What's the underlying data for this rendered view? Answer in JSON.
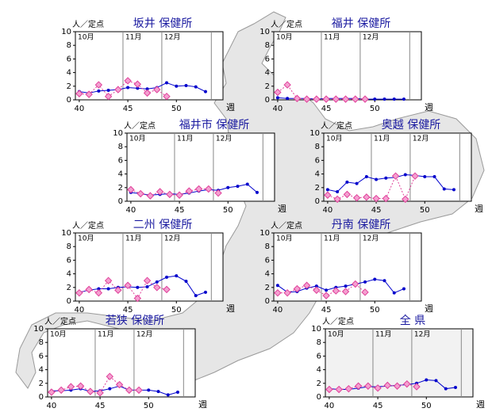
{
  "chart_data": [
    {
      "type": "line",
      "title": "坂井 保健所",
      "y_label": "人／定点",
      "x_label": "週",
      "xlim": [
        39.6,
        54.8
      ],
      "ylim": [
        0,
        10
      ],
      "xticks": [
        40,
        45,
        50
      ],
      "yticks": [
        0,
        2,
        4,
        6,
        8,
        10
      ],
      "months": [
        {
          "label": "10月",
          "x": 39.6
        },
        {
          "label": "11月",
          "x": 44.5
        },
        {
          "label": "12月",
          "x": 48.5
        }
      ],
      "month_end": 53.6,
      "background": "#ffffff",
      "x": [
        40,
        41,
        42,
        43,
        44,
        45,
        46,
        47,
        48,
        49,
        50,
        51,
        52,
        53
      ],
      "series": [
        {
          "color": "#0000cc",
          "line_style": "solid",
          "marker": "circle",
          "values": [
            1.2,
            1.0,
            1.3,
            1.4,
            1.5,
            1.8,
            1.7,
            1.6,
            1.8,
            2.5,
            2.0,
            2.1,
            1.9,
            1.2
          ]
        },
        {
          "color": "#e0409a",
          "line_style": "dashed",
          "marker": "diamond",
          "values": [
            0.9,
            0.8,
            2.2,
            0.5,
            1.5,
            2.8,
            2.3,
            1.0,
            1.5,
            0.5,
            null,
            null,
            null,
            null
          ]
        }
      ]
    },
    {
      "type": "line",
      "title": "福井 保健所",
      "y_label": "人／定点",
      "x_label": "週",
      "xlim": [
        39.6,
        54.8
      ],
      "ylim": [
        0,
        10
      ],
      "xticks": [
        40,
        45,
        50
      ],
      "yticks": [
        0,
        2,
        4,
        6,
        8,
        10
      ],
      "months": [
        {
          "label": "10月",
          "x": 39.6
        },
        {
          "label": "11月",
          "x": 44.5
        },
        {
          "label": "12月",
          "x": 48.5
        }
      ],
      "month_end": 53.6,
      "background": "#ffffff",
      "x": [
        40,
        41,
        42,
        43,
        44,
        45,
        46,
        47,
        48,
        49,
        50,
        51,
        52,
        53
      ],
      "series": [
        {
          "color": "#0000cc",
          "line_style": "solid",
          "marker": "circle",
          "values": [
            0.3,
            0.2,
            0.2,
            0.2,
            0.1,
            0.2,
            0.2,
            0.2,
            0.2,
            0.1,
            0.1,
            0.1,
            0.1,
            0.1
          ]
        },
        {
          "color": "#e0409a",
          "line_style": "dashed",
          "marker": "diamond",
          "values": [
            1.1,
            2.2,
            0.2,
            0.1,
            0.1,
            0.1,
            0.1,
            0.1,
            0.1,
            0.1,
            null,
            null,
            null,
            null
          ]
        }
      ]
    },
    {
      "type": "line",
      "title": "福井市 保健所",
      "y_label": "人／定点",
      "x_label": "週",
      "xlim": [
        39.6,
        54.8
      ],
      "ylim": [
        0,
        10
      ],
      "xticks": [
        40,
        45,
        50
      ],
      "yticks": [
        0,
        2,
        4,
        6,
        8,
        10
      ],
      "months": [
        {
          "label": "10月",
          "x": 39.6
        },
        {
          "label": "11月",
          "x": 44.5
        },
        {
          "label": "12月",
          "x": 48.5
        }
      ],
      "month_end": 53.6,
      "background": "#ffffff",
      "x": [
        40,
        41,
        42,
        43,
        44,
        45,
        46,
        47,
        48,
        49,
        50,
        51,
        52,
        53
      ],
      "series": [
        {
          "color": "#0000cc",
          "line_style": "solid",
          "marker": "circle",
          "values": [
            1.3,
            1.1,
            0.9,
            1.0,
            1.1,
            1.0,
            1.2,
            1.5,
            1.7,
            1.6,
            2.0,
            2.2,
            2.5,
            1.3
          ]
        },
        {
          "color": "#e0409a",
          "line_style": "dashed",
          "marker": "diamond",
          "values": [
            1.7,
            1.1,
            0.8,
            1.4,
            1.0,
            0.9,
            1.5,
            1.8,
            1.8,
            1.2,
            null,
            null,
            null,
            null
          ]
        }
      ]
    },
    {
      "type": "line",
      "title": "奥越 保健所",
      "y_label": "人／定点",
      "x_label": "週",
      "xlim": [
        39.6,
        54.8
      ],
      "ylim": [
        0,
        10
      ],
      "xticks": [
        40,
        45,
        50
      ],
      "yticks": [
        0,
        2,
        4,
        6,
        8,
        10
      ],
      "months": [
        {
          "label": "10月",
          "x": 39.6
        },
        {
          "label": "11月",
          "x": 44.5
        },
        {
          "label": "12月",
          "x": 48.5
        }
      ],
      "month_end": 53.6,
      "background": "#ffffff",
      "x": [
        40,
        41,
        42,
        43,
        44,
        45,
        46,
        47,
        48,
        49,
        50,
        51,
        52,
        53
      ],
      "series": [
        {
          "color": "#0000cc",
          "line_style": "solid",
          "marker": "circle",
          "values": [
            1.7,
            1.4,
            2.8,
            2.6,
            3.6,
            3.2,
            3.4,
            3.5,
            3.9,
            3.8,
            3.6,
            3.6,
            1.8,
            1.7
          ]
        },
        {
          "color": "#e0409a",
          "line_style": "dashed",
          "marker": "diamond",
          "values": [
            0.9,
            0.3,
            1.0,
            0.5,
            0.6,
            0.4,
            0.4,
            3.7,
            0.3,
            3.7,
            null,
            null,
            null,
            null
          ]
        }
      ]
    },
    {
      "type": "line",
      "title": "二州 保健所",
      "y_label": "人／定点",
      "x_label": "週",
      "xlim": [
        39.6,
        54.8
      ],
      "ylim": [
        0,
        10
      ],
      "xticks": [
        40,
        45,
        50
      ],
      "yticks": [
        0,
        2,
        4,
        6,
        8,
        10
      ],
      "months": [
        {
          "label": "10月",
          "x": 39.6
        },
        {
          "label": "11月",
          "x": 44.5
        },
        {
          "label": "12月",
          "x": 48.5
        }
      ],
      "month_end": 53.6,
      "background": "#ffffff",
      "x": [
        40,
        41,
        42,
        43,
        44,
        45,
        46,
        47,
        48,
        49,
        50,
        51,
        52,
        53
      ],
      "series": [
        {
          "color": "#0000cc",
          "line_style": "solid",
          "marker": "circle",
          "values": [
            1.3,
            1.6,
            1.8,
            1.8,
            2.0,
            2.1,
            2.0,
            2.1,
            2.8,
            3.5,
            3.7,
            2.9,
            0.8,
            1.3
          ]
        },
        {
          "color": "#e0409a",
          "line_style": "dashed",
          "marker": "diamond",
          "values": [
            1.2,
            1.7,
            1.2,
            3.0,
            1.6,
            2.3,
            0.4,
            3.0,
            2.0,
            1.7,
            null,
            null,
            null,
            null
          ]
        }
      ]
    },
    {
      "type": "line",
      "title": "丹南 保健所",
      "y_label": "人／定点",
      "x_label": "週",
      "xlim": [
        39.6,
        54.8
      ],
      "ylim": [
        0,
        10
      ],
      "xticks": [
        40,
        45,
        50
      ],
      "yticks": [
        0,
        2,
        4,
        6,
        8,
        10
      ],
      "months": [
        {
          "label": "10月",
          "x": 39.6
        },
        {
          "label": "11月",
          "x": 44.5
        },
        {
          "label": "12月",
          "x": 48.5
        }
      ],
      "month_end": 53.6,
      "background": "#ffffff",
      "x": [
        40,
        41,
        42,
        43,
        44,
        45,
        46,
        47,
        48,
        49,
        50,
        51,
        52,
        53
      ],
      "series": [
        {
          "color": "#0000cc",
          "line_style": "solid",
          "marker": "circle",
          "values": [
            2.3,
            1.3,
            1.4,
            1.9,
            2.2,
            1.6,
            2.0,
            2.2,
            2.5,
            2.8,
            3.2,
            3.0,
            1.2,
            1.8
          ]
        },
        {
          "color": "#e0409a",
          "line_style": "dashed",
          "marker": "diamond",
          "values": [
            1.2,
            1.2,
            1.8,
            2.3,
            1.6,
            0.8,
            1.5,
            1.4,
            2.5,
            1.3,
            null,
            null,
            null,
            null
          ]
        }
      ]
    },
    {
      "type": "line",
      "title": "若狭 保健所",
      "y_label": "人／定点",
      "x_label": "週",
      "xlim": [
        39.6,
        54.8
      ],
      "ylim": [
        0,
        10
      ],
      "xticks": [
        40,
        45,
        50
      ],
      "yticks": [
        0,
        2,
        4,
        6,
        8,
        10
      ],
      "months": [
        {
          "label": "10月",
          "x": 39.6
        },
        {
          "label": "11月",
          "x": 44.5
        },
        {
          "label": "12月",
          "x": 48.5
        }
      ],
      "month_end": 53.6,
      "background": "#ffffff",
      "x": [
        40,
        41,
        42,
        43,
        44,
        45,
        46,
        47,
        48,
        49,
        50,
        51,
        52,
        53
      ],
      "series": [
        {
          "color": "#0000cc",
          "line_style": "solid",
          "marker": "circle",
          "values": [
            0.9,
            0.9,
            1.0,
            1.2,
            0.8,
            0.9,
            1.2,
            1.6,
            1.0,
            1.0,
            1.0,
            0.8,
            0.3,
            0.7
          ]
        },
        {
          "color": "#e0409a",
          "line_style": "dashed",
          "marker": "diamond",
          "values": [
            0.7,
            1.0,
            1.5,
            1.6,
            0.8,
            0.6,
            3.0,
            1.8,
            1.0,
            1.0,
            null,
            null,
            null,
            null
          ]
        }
      ]
    },
    {
      "type": "line",
      "title": "全 県",
      "y_label": "人／定点",
      "x_label": "週",
      "xlim": [
        39.6,
        54.8
      ],
      "ylim": [
        0,
        10
      ],
      "xticks": [
        40,
        45,
        50
      ],
      "yticks": [
        0,
        2,
        4,
        6,
        8,
        10
      ],
      "months": [
        {
          "label": "10月",
          "x": 39.6
        },
        {
          "label": "11月",
          "x": 44.5
        },
        {
          "label": "12月",
          "x": 48.5
        }
      ],
      "month_end": 53.6,
      "background": "#f2f2f2",
      "x": [
        40,
        41,
        42,
        43,
        44,
        45,
        46,
        47,
        48,
        49,
        50,
        51,
        52,
        53
      ],
      "series": [
        {
          "color": "#0000cc",
          "line_style": "solid",
          "marker": "circle",
          "values": [
            1.2,
            1.1,
            1.1,
            1.3,
            1.5,
            1.5,
            1.6,
            1.7,
            1.8,
            2.0,
            2.5,
            2.4,
            1.2,
            1.4
          ]
        },
        {
          "color": "#e0409a",
          "line_style": "dashed",
          "marker": "diamond",
          "values": [
            1.1,
            1.1,
            1.2,
            1.6,
            1.6,
            1.3,
            1.7,
            1.6,
            1.9,
            1.5,
            null,
            null,
            null,
            null
          ]
        }
      ]
    }
  ]
}
